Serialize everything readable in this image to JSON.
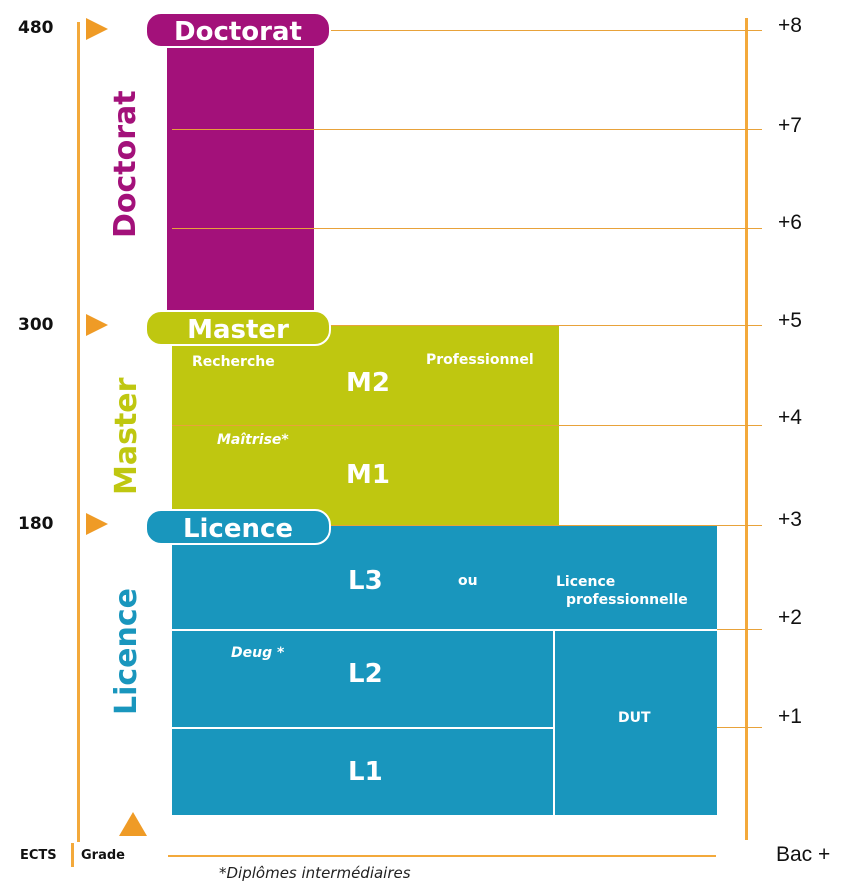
{
  "ects": {
    "header": "ECTS",
    "values": [
      "480",
      "300",
      "180"
    ]
  },
  "grade_header": "Grade",
  "bac": {
    "footer": "Bac +",
    "levels": [
      "+8",
      "+7",
      "+6",
      "+5",
      "+4",
      "+3",
      "+2",
      "+1"
    ]
  },
  "doctorat": {
    "pill": "Doctorat",
    "side": "Doctorat"
  },
  "master": {
    "pill": "Master",
    "side": "Master",
    "recherche": "Recherche",
    "professionnel": "Professionnel",
    "m2": "M2",
    "m1": "M1",
    "maitrise": "Maîtrise*"
  },
  "licence": {
    "pill": "Licence",
    "side": "Licence",
    "l3": "L3",
    "ou": "ou",
    "licence_pro_line1": "Licence",
    "licence_pro_line2": "professionnelle",
    "l2": "L2",
    "l1": "L1",
    "deug": "Deug *",
    "dut": "DUT"
  },
  "footnote": "*Diplômes intermédiaires",
  "colors": {
    "doctorat": "#a3117a",
    "master": "#bfc710",
    "licence": "#1996bd",
    "axis": "#f3a93b",
    "arrow": "#ef9b26"
  }
}
